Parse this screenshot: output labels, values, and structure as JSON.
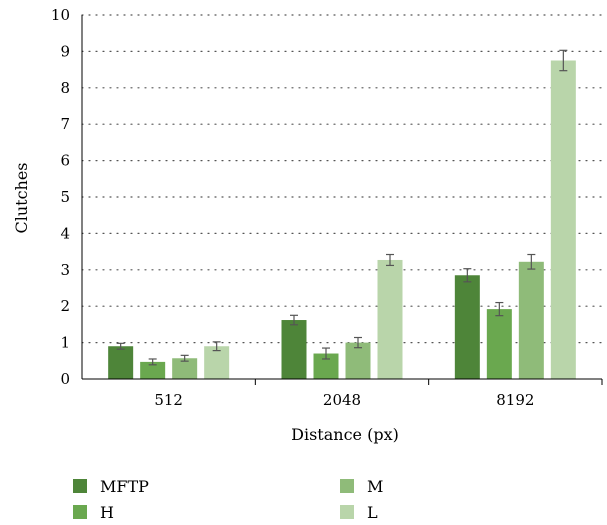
{
  "chart_data": {
    "type": "bar",
    "xlabel": "Distance (px)",
    "ylabel": "Clutches",
    "ylim": [
      0,
      10
    ],
    "yticks": [
      0,
      1,
      2,
      3,
      4,
      5,
      6,
      7,
      8,
      9,
      10
    ],
    "categories": [
      "512",
      "2048",
      "8192"
    ],
    "grid": "horizontal dotted",
    "legend_position": "bottom",
    "series": [
      {
        "name": "MFTP",
        "color": "#4e8539",
        "values": [
          0.9,
          1.62,
          2.85
        ],
        "errors": [
          0.08,
          0.13,
          0.18
        ]
      },
      {
        "name": "H",
        "color": "#6aa84f",
        "values": [
          0.47,
          0.7,
          1.92
        ],
        "errors": [
          0.08,
          0.15,
          0.18
        ]
      },
      {
        "name": "M",
        "color": "#8fbb79",
        "values": [
          0.57,
          1.0,
          3.22
        ],
        "errors": [
          0.08,
          0.14,
          0.2
        ]
      },
      {
        "name": "L",
        "color": "#b9d5aa",
        "values": [
          0.9,
          3.27,
          8.75
        ],
        "errors": [
          0.12,
          0.15,
          0.28
        ]
      }
    ]
  }
}
